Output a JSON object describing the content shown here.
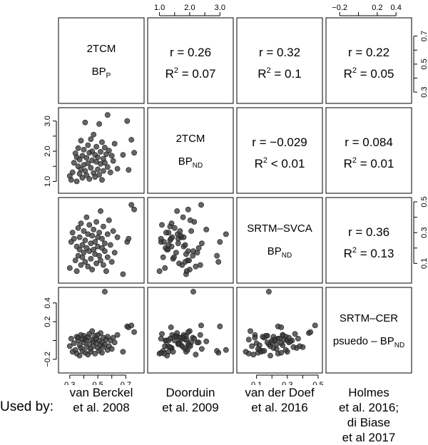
{
  "footer": {
    "used_by": "Used by:",
    "columns": [
      [
        "van Berckel",
        "et al. 2008"
      ],
      [
        "Doorduin",
        "et al. 2009"
      ],
      [
        "van der Doef",
        "et al. 2016"
      ],
      [
        "Holmes",
        "et al. 2016;",
        "di Biase",
        "et al 2017"
      ]
    ]
  },
  "chart_data": {
    "type": "scatter-matrix",
    "variables": [
      {
        "key": "twotcm_bpp",
        "name": "2TCM",
        "sub": "P",
        "prefix": "BP",
        "range": [
          0.25,
          0.8
        ],
        "ticks": [
          0.3,
          0.5,
          0.7
        ],
        "tick_labels": [
          "0.3",
          "0.5",
          "0.7"
        ]
      },
      {
        "key": "twotcm_bpnd",
        "name": "2TCM",
        "sub": "ND",
        "prefix": "BP",
        "range": [
          0.75,
          3.3
        ],
        "ticks": [
          1.0,
          2.0,
          3.0
        ],
        "tick_labels": [
          "1.0",
          "2.0",
          "3.0"
        ]
      },
      {
        "key": "srtm_svca",
        "name": "SRTM–SVCA",
        "sub": "ND",
        "prefix": "BP",
        "range": [
          0.0,
          0.5
        ],
        "ticks": [
          0.1,
          0.3,
          0.5
        ],
        "tick_labels": [
          "0.1",
          "0.3",
          "0.5"
        ]
      },
      {
        "key": "srtm_cer",
        "name": "SRTM–CER",
        "sub": "ND",
        "prefix": "psuedo – BP",
        "range": [
          -0.3,
          0.52
        ],
        "ticks": [
          -0.2,
          0.2,
          0.4
        ],
        "tick_labels": [
          "−0.2",
          "0.2",
          "0.4"
        ]
      }
    ],
    "top_axis": [
      {
        "col": 1,
        "ticks": [
          1.0,
          2.0,
          3.0
        ],
        "labels": [
          "1.0",
          "2.0",
          "3.0"
        ],
        "minor": [
          1.5,
          2.5
        ]
      },
      {
        "col": 3,
        "ticks": [
          -0.2,
          0.2,
          0.4
        ],
        "labels": [
          "−0.2",
          "0.2",
          "0.4"
        ],
        "minor": [
          0.0
        ]
      }
    ],
    "right_axis": [
      {
        "row": 0,
        "ticks": [
          0.3,
          0.5,
          0.7
        ],
        "labels": [
          "0.3",
          "0.5",
          "0.7"
        ],
        "minor": [
          0.4,
          0.6
        ]
      },
      {
        "row": 2,
        "ticks": [
          0.1,
          0.3,
          0.5
        ],
        "labels": [
          "0.1",
          "0.3",
          "0.5"
        ],
        "minor": [
          0.2,
          0.4
        ]
      }
    ],
    "left_axis": [
      {
        "row": 1,
        "ticks": [
          1.0,
          2.0,
          3.0
        ],
        "labels": [
          "1.0",
          "2.0",
          "3.0"
        ],
        "minor": [
          1.5,
          2.5
        ]
      },
      {
        "row": 3,
        "ticks": [
          -0.2,
          0.2,
          0.4
        ],
        "labels": [
          "−0.2",
          "0.2",
          "0.4"
        ],
        "minor": [
          0.0
        ]
      }
    ],
    "bottom_axis": [
      {
        "col": 0,
        "ticks": [
          0.3,
          0.5,
          0.7
        ],
        "labels": [
          "0.3",
          "0.5",
          "0.7"
        ],
        "minor": [
          0.4,
          0.6
        ]
      },
      {
        "col": 2,
        "ticks": [
          0.1,
          0.3,
          0.5
        ],
        "labels": [
          "0.1",
          "0.3",
          "0.5"
        ],
        "minor": [
          0.2,
          0.4
        ]
      }
    ],
    "correlations": [
      {
        "row": 0,
        "col": 1,
        "r": "r = 0.26",
        "r2": "= 0.07"
      },
      {
        "row": 0,
        "col": 2,
        "r": "r = 0.32",
        "r2": "= 0.1"
      },
      {
        "row": 0,
        "col": 3,
        "r": "r = 0.22",
        "r2": "= 0.05"
      },
      {
        "row": 1,
        "col": 2,
        "r": "r = −0.029",
        "r2": "< 0.01"
      },
      {
        "row": 1,
        "col": 3,
        "r": "r = 0.084",
        "r2": "= 0.01"
      },
      {
        "row": 2,
        "col": 3,
        "r": "r = 0.36",
        "r2": "= 0.13"
      }
    ],
    "observations": [
      [
        0.3,
        1.18,
        0.07,
        -0.06
      ],
      [
        0.31,
        1.05,
        0.24,
        0.02
      ],
      [
        0.32,
        1.3,
        0.3,
        -0.12
      ],
      [
        0.33,
        1.62,
        0.26,
        -0.03
      ],
      [
        0.34,
        1.93,
        0.12,
        -0.1
      ],
      [
        0.35,
        1.8,
        0.21,
        0.04
      ],
      [
        0.35,
        1.0,
        0.05,
        -0.14
      ],
      [
        0.36,
        1.5,
        0.33,
        0.0
      ],
      [
        0.36,
        2.1,
        0.15,
        0.03
      ],
      [
        0.37,
        1.25,
        0.19,
        -0.16
      ],
      [
        0.37,
        1.72,
        0.27,
        -0.05
      ],
      [
        0.38,
        2.35,
        0.09,
        0.06
      ],
      [
        0.38,
        1.4,
        0.36,
        -0.08
      ],
      [
        0.39,
        1.85,
        0.22,
        0.01
      ],
      [
        0.39,
        1.12,
        0.14,
        -0.11
      ],
      [
        0.4,
        2.05,
        0.31,
        -0.02
      ],
      [
        0.4,
        1.55,
        0.17,
        0.05
      ],
      [
        0.41,
        2.95,
        0.11,
        -0.13
      ],
      [
        0.41,
        1.35,
        0.25,
        0.02
      ],
      [
        0.42,
        1.78,
        0.4,
        -0.07
      ],
      [
        0.42,
        1.2,
        0.2,
        0.0
      ],
      [
        0.43,
        2.2,
        0.08,
        -0.15
      ],
      [
        0.43,
        1.6,
        0.29,
        0.04
      ],
      [
        0.44,
        1.95,
        0.18,
        -0.04
      ],
      [
        0.44,
        1.08,
        0.35,
        0.07
      ],
      [
        0.45,
        2.4,
        0.23,
        -0.09
      ],
      [
        0.45,
        1.45,
        0.13,
        -0.12
      ],
      [
        0.46,
        1.7,
        0.28,
        0.01
      ],
      [
        0.46,
        2.0,
        0.06,
        0.1
      ],
      [
        0.47,
        1.28,
        0.19,
        -0.06
      ],
      [
        0.47,
        2.55,
        0.32,
        -0.01
      ],
      [
        0.48,
        1.88,
        0.16,
        0.05
      ],
      [
        0.48,
        1.15,
        0.24,
        -0.14
      ],
      [
        0.49,
        1.65,
        0.1,
        -0.03
      ],
      [
        0.49,
        2.15,
        0.37,
        0.02
      ],
      [
        0.5,
        1.4,
        0.21,
        -0.08
      ],
      [
        0.5,
        1.8,
        0.27,
        0.06
      ],
      [
        0.51,
        2.9,
        0.15,
        -0.11
      ],
      [
        0.51,
        1.22,
        0.3,
        0.0
      ],
      [
        0.52,
        1.98,
        0.12,
        -0.05
      ],
      [
        0.52,
        1.58,
        0.44,
        0.08
      ],
      [
        0.53,
        2.3,
        0.2,
        -0.02
      ],
      [
        0.53,
        1.05,
        0.26,
        -0.13
      ],
      [
        0.54,
        1.75,
        0.09,
        0.03
      ],
      [
        0.54,
        1.35,
        0.34,
        -0.07
      ],
      [
        0.55,
        2.12,
        0.18,
        0.52
      ],
      [
        0.55,
        1.62,
        0.23,
        -0.04
      ],
      [
        0.56,
        1.9,
        0.05,
        0.01
      ],
      [
        0.57,
        3.2,
        0.29,
        -0.1
      ],
      [
        0.57,
        1.48,
        0.14,
        0.04
      ],
      [
        0.58,
        2.02,
        0.38,
        -0.06
      ],
      [
        0.59,
        1.3,
        0.22,
        0.0
      ],
      [
        0.6,
        1.85,
        0.11,
        -0.09
      ],
      [
        0.61,
        1.68,
        0.31,
        0.03
      ],
      [
        0.62,
        2.25,
        0.17,
        -0.02
      ],
      [
        0.64,
        1.42,
        0.27,
        0.06
      ],
      [
        0.68,
        1.88,
        0.03,
        -0.12
      ],
      [
        0.71,
        3.0,
        0.24,
        0.15
      ],
      [
        0.72,
        1.38,
        0.26,
        0.14
      ],
      [
        0.74,
        2.38,
        0.48,
        0.16
      ],
      [
        0.76,
        1.95,
        0.45,
        0.09
      ]
    ]
  }
}
